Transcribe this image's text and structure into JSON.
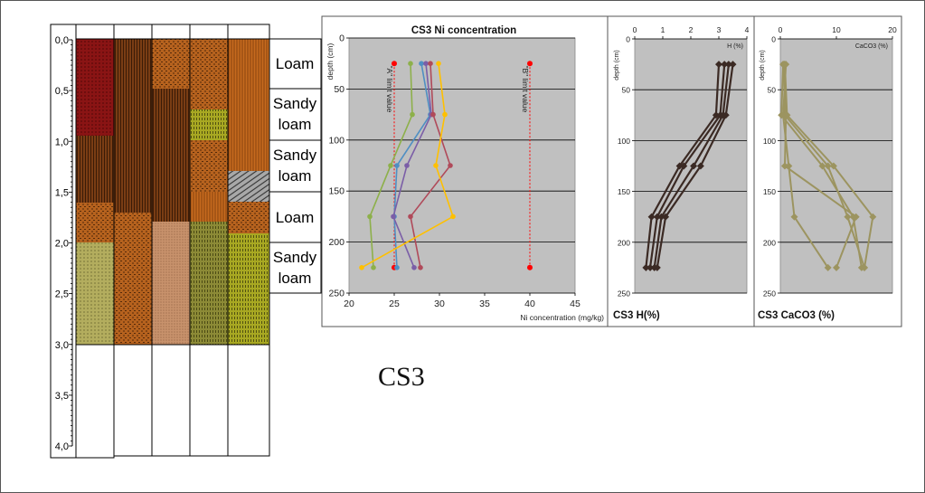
{
  "column": {
    "depth_ticks": [
      "0,0",
      "0,5",
      "1,0",
      "1,5",
      "2,0",
      "2,5",
      "3,0",
      "3,5",
      "4,0"
    ]
  },
  "textures": {
    "tex1": "Loam",
    "tex2": "Sandy loam",
    "tex3": "Sandy loam",
    "tex4": "Loam",
    "tex5": "Sandy loam"
  },
  "site_label": "CS3",
  "chart_data": [
    {
      "type": "line",
      "title": "CS3 Ni concentration",
      "xlabel": "Ni concentration (mg/kg)",
      "ylabel": "depth (cm)",
      "xlim": [
        20,
        45
      ],
      "ylim": [
        250,
        0
      ],
      "xticks": [
        "20",
        "25",
        "30",
        "35",
        "40",
        "45"
      ],
      "yticks": [
        "0",
        "50",
        "100",
        "150",
        "200",
        "250"
      ],
      "grid": true,
      "limit_lines": [
        {
          "label": "\"A\" limit value",
          "x": 25,
          "y_range": [
            25,
            225
          ],
          "color": "#ff0000"
        },
        {
          "label": "\"B\" limit value",
          "x": 40,
          "y_range": [
            25,
            225
          ],
          "color": "#ff0000"
        }
      ],
      "series": [
        {
          "color": "#8db04a",
          "points": [
            [
              26.8,
              25
            ],
            [
              27.0,
              75
            ],
            [
              24.6,
              125
            ],
            [
              22.3,
              175
            ],
            [
              22.7,
              225
            ]
          ]
        },
        {
          "color": "#4f8fc3",
          "points": [
            [
              28.0,
              25
            ],
            [
              29.0,
              75
            ],
            [
              25.3,
              125
            ],
            [
              25.0,
              175
            ],
            [
              25.3,
              225
            ]
          ]
        },
        {
          "color": "#7b5ea7",
          "points": [
            [
              28.5,
              25
            ],
            [
              29.1,
              75
            ],
            [
              26.4,
              125
            ],
            [
              24.9,
              175
            ],
            [
              27.2,
              225
            ]
          ]
        },
        {
          "color": "#b04a5a",
          "points": [
            [
              29.0,
              25
            ],
            [
              29.3,
              75
            ],
            [
              31.2,
              125
            ],
            [
              26.8,
              175
            ],
            [
              27.9,
              225
            ]
          ]
        },
        {
          "color": "#ffc000",
          "points": [
            [
              29.9,
              25
            ],
            [
              30.6,
              75
            ],
            [
              29.6,
              125
            ],
            [
              31.5,
              175
            ],
            [
              21.4,
              225
            ]
          ]
        }
      ]
    },
    {
      "type": "line",
      "title": "CS3 H(%)",
      "xlabel": "H (%)",
      "ylabel": "depth (cm)",
      "xlim": [
        0,
        4
      ],
      "ylim": [
        250,
        0
      ],
      "xticks": [
        "0",
        "1",
        "2",
        "3",
        "4"
      ],
      "yticks": [
        "0",
        "50",
        "100",
        "150",
        "200",
        "250"
      ],
      "grid": true,
      "series": [
        {
          "color": "#3b2a24",
          "points": [
            [
              3.0,
              25
            ],
            [
              2.9,
              75
            ],
            [
              1.6,
              125
            ],
            [
              0.6,
              175
            ],
            [
              0.4,
              225
            ]
          ]
        },
        {
          "color": "#3b2a24",
          "points": [
            [
              3.2,
              25
            ],
            [
              3.05,
              75
            ],
            [
              1.75,
              125
            ],
            [
              0.8,
              175
            ],
            [
              0.55,
              225
            ]
          ]
        },
        {
          "color": "#3b2a24",
          "points": [
            [
              3.35,
              25
            ],
            [
              3.15,
              75
            ],
            [
              2.1,
              125
            ],
            [
              0.95,
              175
            ],
            [
              0.7,
              225
            ]
          ]
        },
        {
          "color": "#3b2a24",
          "points": [
            [
              3.5,
              25
            ],
            [
              3.25,
              75
            ],
            [
              2.35,
              125
            ],
            [
              1.1,
              175
            ],
            [
              0.8,
              225
            ]
          ]
        }
      ]
    },
    {
      "type": "line",
      "title": "CS3 CaCO3 (%)",
      "xlabel": "CaCO3 (%)",
      "ylabel": "depth (cm)",
      "xlim": [
        0,
        20
      ],
      "ylim": [
        250,
        0
      ],
      "xticks": [
        "0",
        "10",
        "20"
      ],
      "yticks": [
        "0",
        "50",
        "100",
        "150",
        "200",
        "250"
      ],
      "grid": true,
      "series": [
        {
          "color": "#9c9460",
          "points": [
            [
              0.5,
              25
            ],
            [
              0.2,
              75
            ],
            [
              7.5,
              125
            ],
            [
              13.0,
              175
            ],
            [
              14.5,
              225
            ]
          ]
        },
        {
          "color": "#9c9460",
          "points": [
            [
              0.7,
              25
            ],
            [
              0.8,
              75
            ],
            [
              8.5,
              125
            ],
            [
              12.0,
              175
            ],
            [
              15.0,
              225
            ]
          ]
        },
        {
          "color": "#9c9460",
          "points": [
            [
              0.8,
              25
            ],
            [
              1.2,
              75
            ],
            [
              9.5,
              125
            ],
            [
              16.5,
              175
            ],
            [
              15.0,
              225
            ]
          ]
        },
        {
          "color": "#9c9460",
          "points": [
            [
              1.0,
              25
            ],
            [
              0.5,
              75
            ],
            [
              1.5,
              125
            ],
            [
              2.5,
              175
            ],
            [
              8.5,
              225
            ]
          ]
        },
        {
          "color": "#9c9460",
          "points": [
            [
              0.5,
              25
            ],
            [
              1.0,
              75
            ],
            [
              0.8,
              125
            ],
            [
              13.5,
              175
            ],
            [
              10.0,
              225
            ]
          ]
        }
      ]
    }
  ]
}
